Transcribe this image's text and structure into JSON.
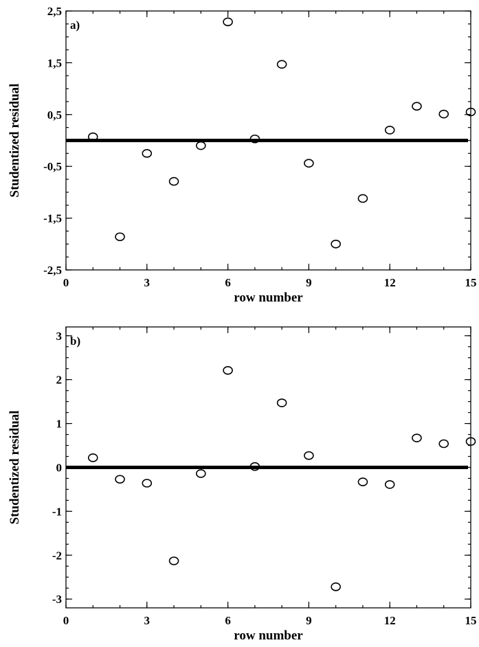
{
  "chart_data": [
    {
      "type": "scatter",
      "panel_label": "a)",
      "xlabel": "row number",
      "ylabel": "Studentized residual",
      "xlim": [
        0,
        15
      ],
      "ylim": [
        -2.5,
        2.5
      ],
      "xticks": [
        0,
        3,
        6,
        9,
        12,
        15
      ],
      "xtick_labels": [
        "0",
        "3",
        "6",
        "9",
        "12",
        "15"
      ],
      "yticks": [
        -2.5,
        -1.5,
        -0.5,
        0.5,
        1.5,
        2.5
      ],
      "ytick_labels": [
        "-2,5",
        "-1,5",
        "-0,5",
        "0,5",
        "1,5",
        "2,5"
      ],
      "minor_x_step": 1,
      "minor_y_step": 0.25,
      "reference_line_y": 0,
      "marker": "open-circle",
      "grid": false,
      "x": [
        1,
        2,
        3,
        4,
        5,
        6,
        7,
        8,
        9,
        10,
        11,
        12,
        13,
        14,
        15
      ],
      "y": [
        0.07,
        -1.86,
        -0.25,
        -0.79,
        -0.1,
        2.29,
        0.03,
        1.47,
        -0.44,
        -2.0,
        -1.12,
        0.2,
        0.66,
        0.51,
        0.55
      ]
    },
    {
      "type": "scatter",
      "panel_label": "b)",
      "xlabel": "row number",
      "ylabel": "Studentized residual",
      "xlim": [
        0,
        15
      ],
      "ylim": [
        -3.2,
        3.2
      ],
      "xticks": [
        0,
        3,
        6,
        9,
        12,
        15
      ],
      "xtick_labels": [
        "0",
        "3",
        "6",
        "9",
        "12",
        "15"
      ],
      "yticks": [
        -3,
        -2,
        -1,
        0,
        1,
        2,
        3
      ],
      "ytick_labels": [
        "-3",
        "-2",
        "-1",
        "0",
        "1",
        "2",
        "3"
      ],
      "minor_x_step": 1,
      "minor_y_step": 0.25,
      "reference_line_y": 0,
      "marker": "open-circle",
      "grid": false,
      "x": [
        1,
        2,
        3,
        4,
        5,
        6,
        7,
        8,
        9,
        10,
        11,
        12,
        13,
        14,
        15
      ],
      "y": [
        0.22,
        -0.27,
        -0.36,
        -2.13,
        -0.14,
        2.21,
        0.02,
        1.47,
        0.27,
        -2.72,
        -0.33,
        -0.39,
        0.67,
        0.54,
        0.59
      ]
    }
  ]
}
